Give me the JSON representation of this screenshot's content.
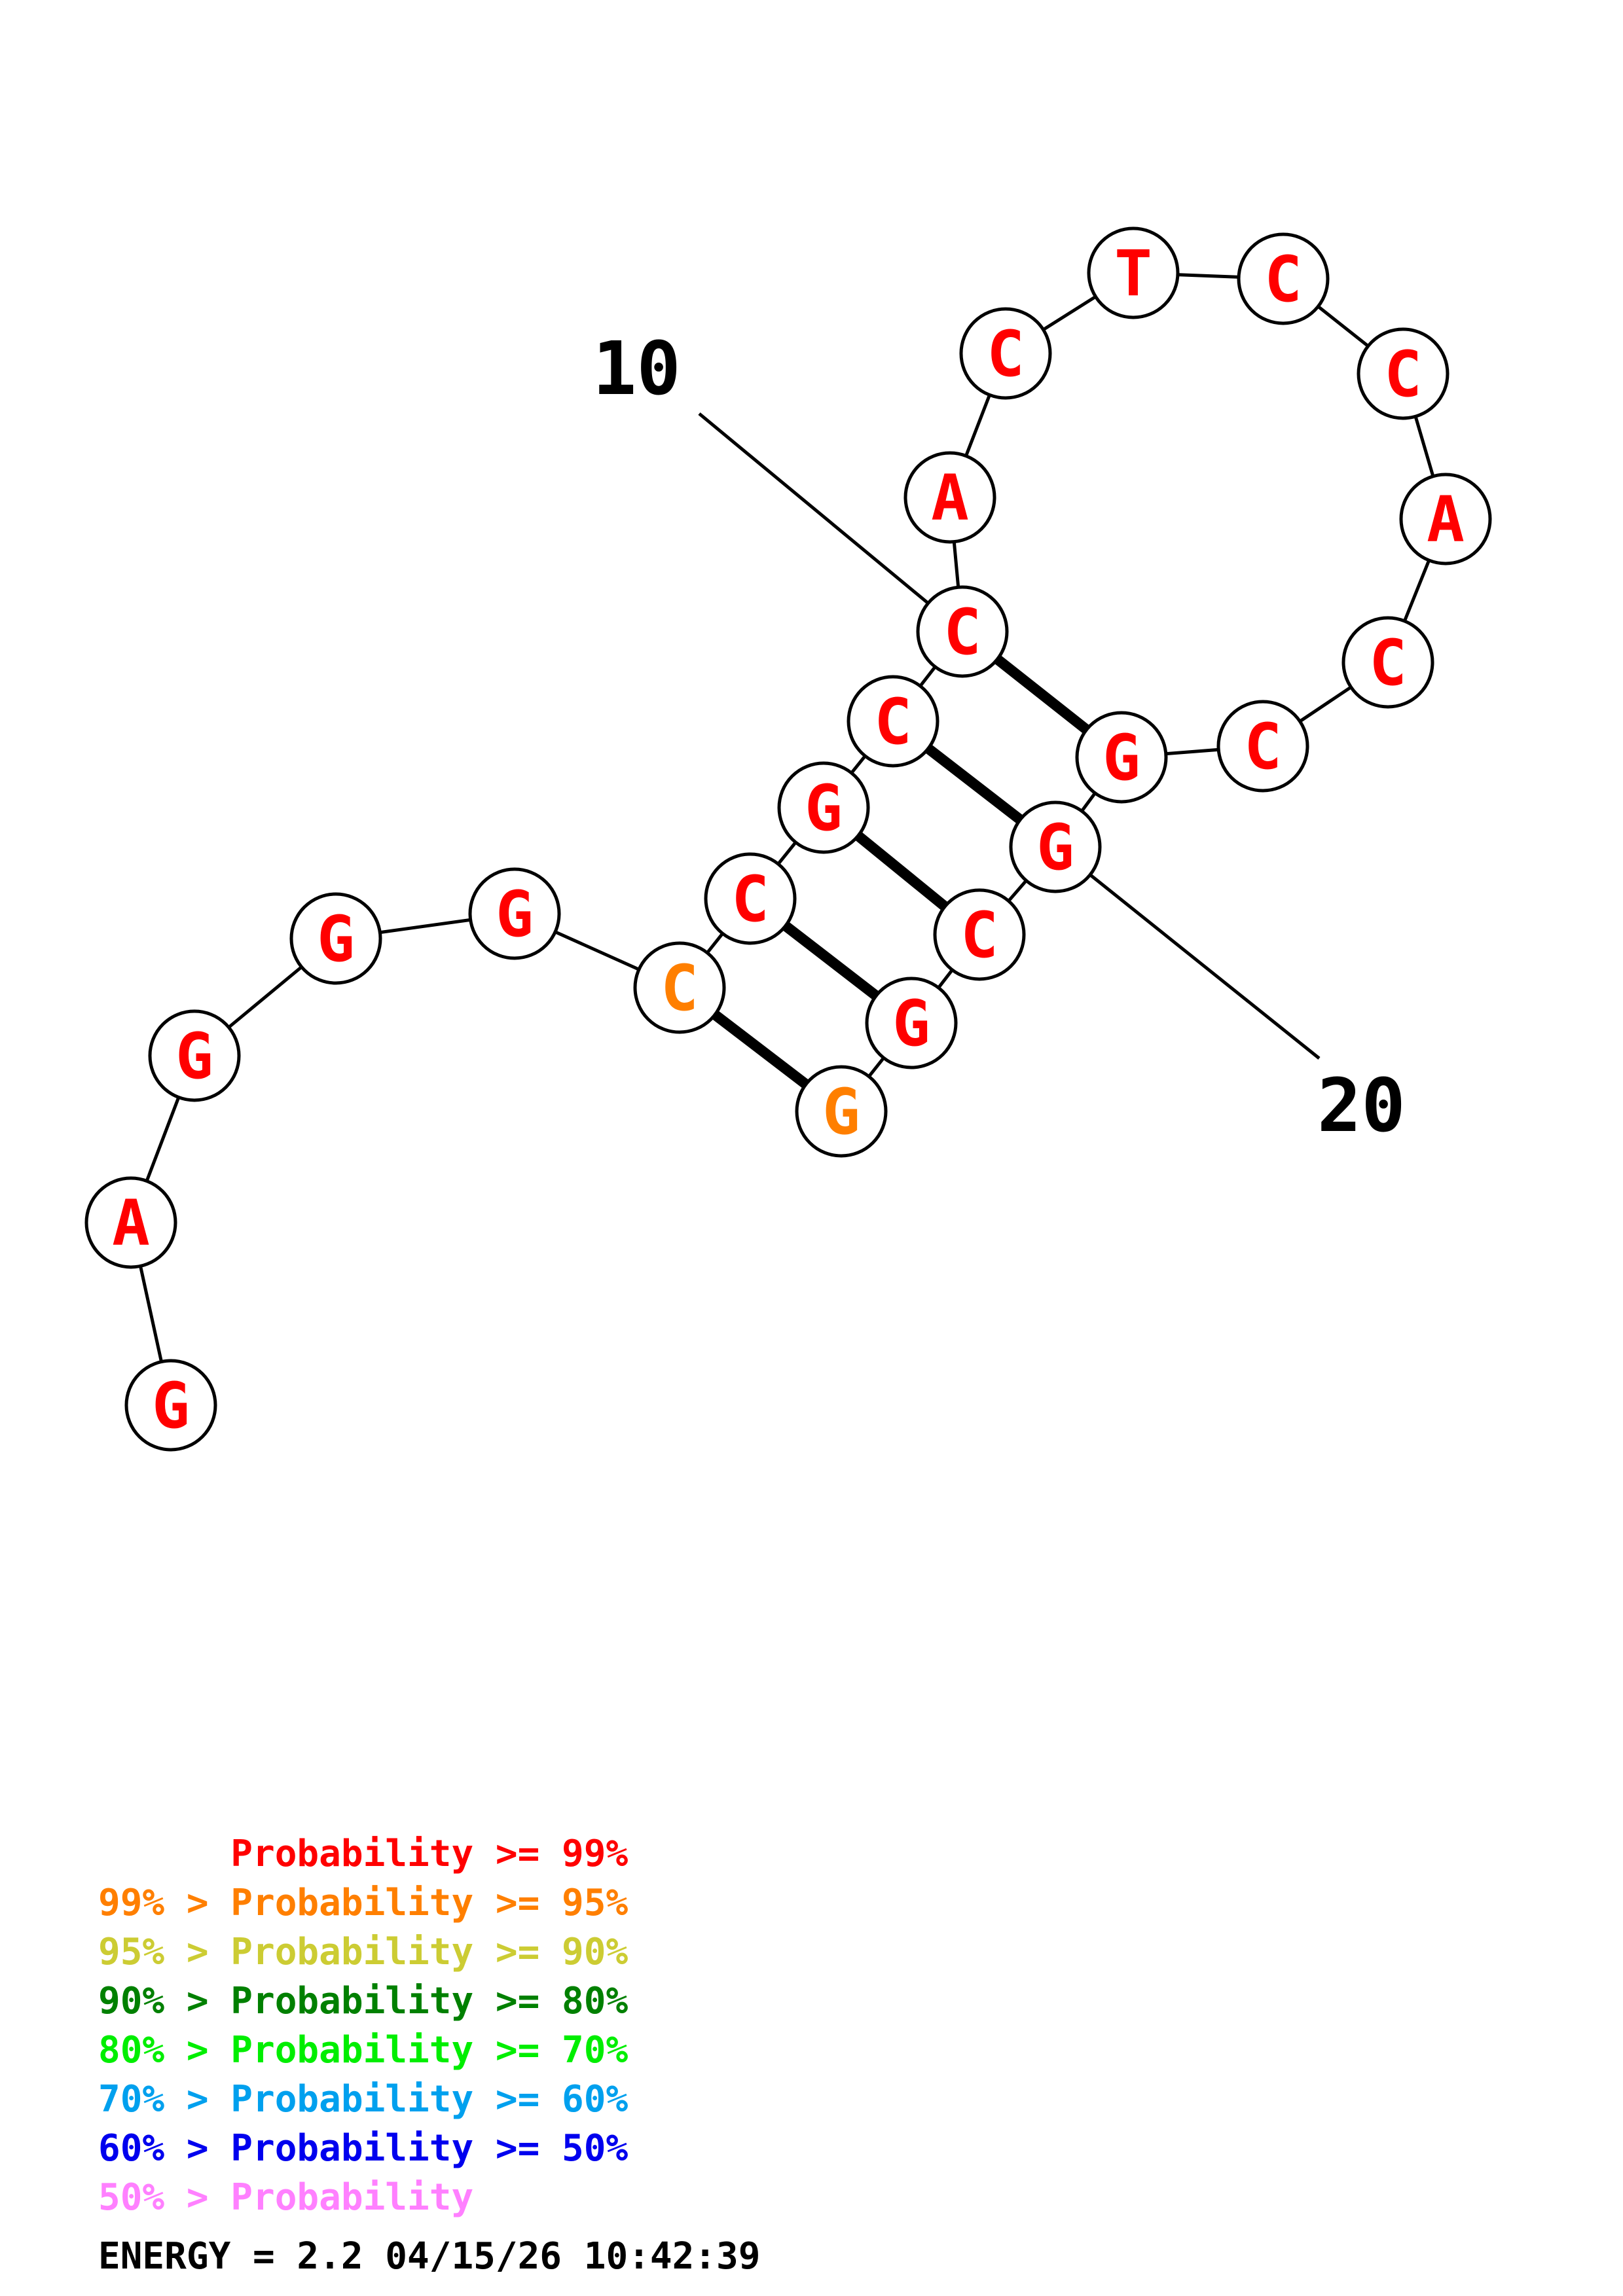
{
  "colors": {
    "p99": "#ff0000",
    "p95": "#ff7f00",
    "p90": "#cccc33",
    "p80": "#008000",
    "p70": "#00ee00",
    "p60": "#00a0ee",
    "p50": "#0000ee",
    "low": "#ff80ff",
    "ink": "#000000"
  },
  "structure": {
    "sequence": [
      "G",
      "A",
      "G",
      "G",
      "G",
      "C",
      "C",
      "G",
      "C",
      "C",
      "A",
      "C",
      "T",
      "C",
      "C",
      "A",
      "C",
      "C",
      "G",
      "G",
      "C",
      "G",
      "G"
    ],
    "colors": [
      "p99",
      "p99",
      "p99",
      "p99",
      "p99",
      "p95",
      "p99",
      "p99",
      "p99",
      "p99",
      "p99",
      "p99",
      "p99",
      "p99",
      "p99",
      "p99",
      "p99",
      "p99",
      "p99",
      "p99",
      "p99",
      "p99",
      "p95"
    ],
    "pairs": [
      [
        6,
        23
      ],
      [
        7,
        22
      ],
      [
        8,
        21
      ],
      [
        9,
        20
      ],
      [
        10,
        19
      ]
    ],
    "position_labels": [
      {
        "index": 10,
        "text": "10"
      },
      {
        "index": 20,
        "text": "20"
      }
    ]
  },
  "legend": {
    "rows": [
      {
        "prefix": "",
        "main": "Probability >= 99%",
        "color": "p99"
      },
      {
        "prefix": "99% > ",
        "main": "Probability >= 95%",
        "color": "p95"
      },
      {
        "prefix": "95% > ",
        "main": "Probability >= 90%",
        "color": "p90"
      },
      {
        "prefix": "90% > ",
        "main": "Probability >= 80%",
        "color": "p80"
      },
      {
        "prefix": "80% > ",
        "main": "Probability >= 70%",
        "color": "p70"
      },
      {
        "prefix": "70% > ",
        "main": "Probability >= 60%",
        "color": "p60"
      },
      {
        "prefix": "60% > ",
        "main": "Probability >= 50%",
        "color": "p50"
      },
      {
        "prefix": "50% > ",
        "main": "Probability",
        "color": "low"
      }
    ],
    "energy_line": "ENERGY = 2.2  04/15/26 10:42:39"
  }
}
